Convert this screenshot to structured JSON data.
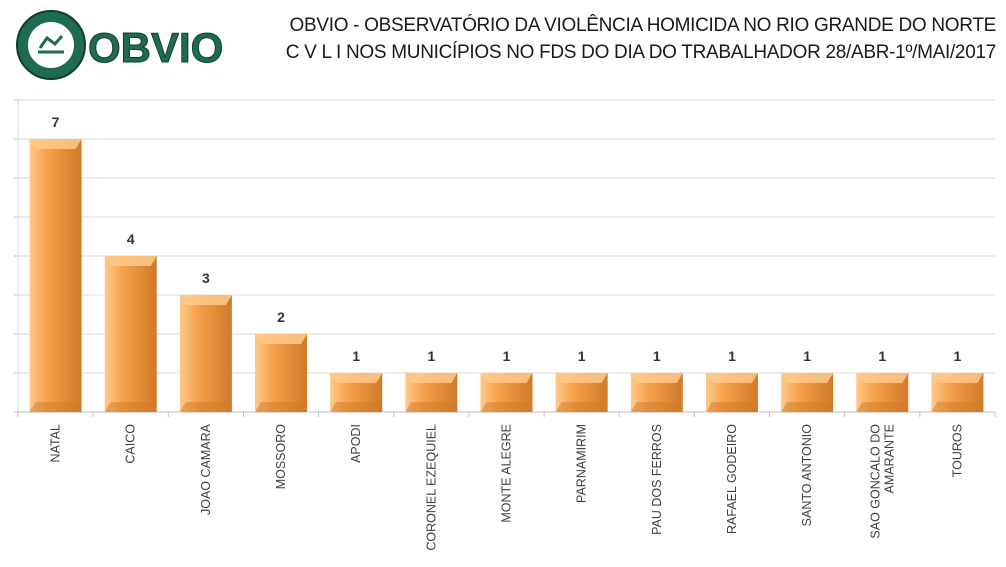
{
  "header": {
    "logo_text": "OBVIO",
    "title_line1": "OBVIO - OBSERVATÓRIO DA VIOLÊNCIA HOMICIDA NO RIO GRANDE DO NORTE",
    "title_line2": "C V L I  NOS MUNICÍPIOS NO FDS DO DIA DO TRABALHADOR  28/ABR-1º/MAI/2017"
  },
  "colors": {
    "bar_light": "#FFC98A",
    "bar_main": "#F5A04A",
    "bar_dark": "#D07A2A",
    "logo_green": "#1E6B4E"
  },
  "chart_data": {
    "type": "bar",
    "categories": [
      "NATAL",
      "CAICO",
      "JOAO CAMARA",
      "MOSSORO",
      "APODI",
      "CORONEL EZEQUIEL",
      "MONTE ALEGRE",
      "PARNAMIRIM",
      "PAU DOS FERROS",
      "RAFAEL GODEIRO",
      "SANTO ANTONIO",
      "SAO GONCALO DO AMARANTE",
      "TOUROS"
    ],
    "category_lines": [
      [
        "NATAL"
      ],
      [
        "CAICO"
      ],
      [
        "JOAO CAMARA"
      ],
      [
        "MOSSORO"
      ],
      [
        "APODI"
      ],
      [
        "CORONEL EZEQUIEL"
      ],
      [
        "MONTE ALEGRE"
      ],
      [
        "PARNAMIRIM"
      ],
      [
        "PAU DOS FERROS"
      ],
      [
        "RAFAEL GODEIRO"
      ],
      [
        "SANTO ANTONIO"
      ],
      [
        "SAO GONCALO DO",
        "AMARANTE"
      ],
      [
        "TOUROS"
      ]
    ],
    "values": [
      7,
      4,
      3,
      2,
      1,
      1,
      1,
      1,
      1,
      1,
      1,
      1,
      1
    ],
    "ylim": [
      0,
      8
    ],
    "grid": true,
    "data_labels": true
  }
}
